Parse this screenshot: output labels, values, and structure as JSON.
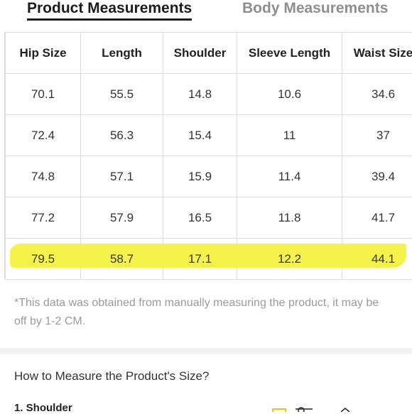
{
  "tabs": [
    {
      "label": "Product Measurements",
      "active": true
    },
    {
      "label": "Body Measurements",
      "active": false
    }
  ],
  "table": {
    "headers": [
      "Hip Size",
      "Length",
      "Shoulder",
      "Sleeve Length",
      "Waist Size"
    ],
    "rows": [
      [
        "70.1",
        "55.5",
        "14.8",
        "10.6",
        "34.6"
      ],
      [
        "72.4",
        "56.3",
        "15.4",
        "11",
        "37"
      ],
      [
        "74.8",
        "57.1",
        "15.9",
        "11.4",
        "39.4"
      ],
      [
        "77.2",
        "57.9",
        "16.5",
        "11.8",
        "41.7"
      ],
      [
        "79.5",
        "58.7",
        "17.1",
        "12.2",
        "44.1"
      ]
    ],
    "highlighted_row": 4,
    "highlight_color": "#f4f23a"
  },
  "note": "*This data was obtained from manually measuring the product, it may be off by 1-2 CM.",
  "howto": {
    "title": "How to Measure the Product's Size?",
    "section": "1. Shoulder"
  },
  "colors": {
    "active_tab": "#1c1c1c",
    "inactive_tab": "#8e8e8e",
    "border": "#dcdcdc",
    "note_text": "#9a9a9a"
  }
}
